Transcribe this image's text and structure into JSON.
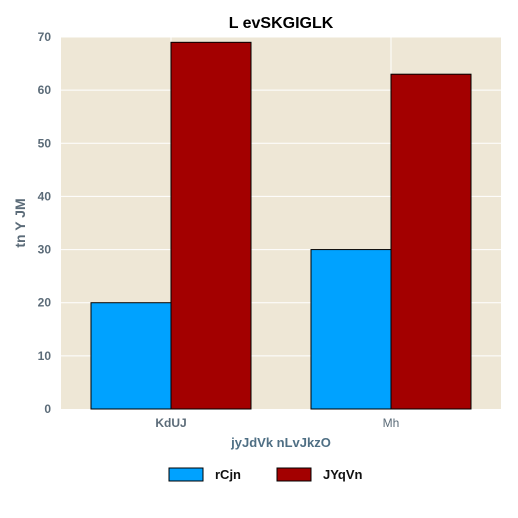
{
  "chart_data": {
    "type": "bar",
    "title": "L evSKGIGLK",
    "xlabel": "jyJdVk nLvJkzO",
    "ylabel": "tn Y JM",
    "categories": [
      "KdUJ",
      "Mh"
    ],
    "ylim": [
      0,
      70
    ],
    "yticks": [
      0,
      10,
      20,
      30,
      40,
      50,
      60,
      70
    ],
    "grid": true,
    "legend_position": "bottom",
    "series": [
      {
        "name": "rCjn",
        "values": [
          20,
          30
        ],
        "color": "#00a2ff"
      },
      {
        "name": "JYqVn",
        "values": [
          69,
          63
        ],
        "color": "#a30000"
      }
    ],
    "plot_background": "#eee7d6",
    "grid_color": "#ffffff",
    "axis_text_color": "#5b6b78",
    "ylabel_color": "#5b6b78",
    "xlabel_color": "#4f6f84"
  }
}
